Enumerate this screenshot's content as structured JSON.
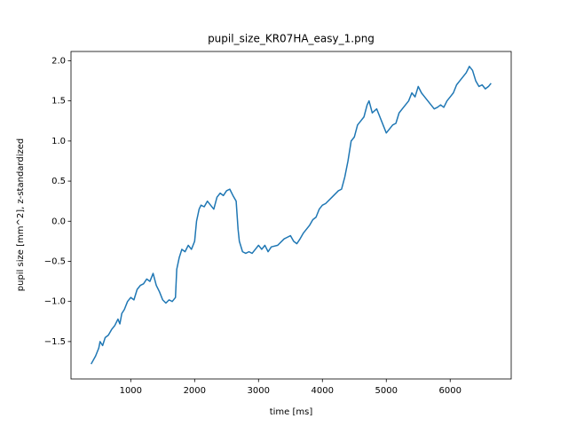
{
  "chart_data": {
    "type": "line",
    "title": "pupil_size_KR07HA_easy_1.png",
    "x_label": "time [ms]",
    "y_label": "pupil size [mm^2], z-standardized",
    "color": "#1f77b4",
    "xlim": [
      65,
      6955
    ],
    "ylim": [
      -1.966,
      2.116
    ],
    "xticks": [
      1000,
      2000,
      3000,
      4000,
      5000,
      6000
    ],
    "yticks": [
      {
        "value": -1.5,
        "label": "−1.5"
      },
      {
        "value": -1.0,
        "label": "−1.0"
      },
      {
        "value": -0.5,
        "label": "−0.5"
      },
      {
        "value": 0.0,
        "label": "0.0"
      },
      0.5,
      {
        "value": 1.0,
        "label": "1.0"
      },
      1.5,
      {
        "value": 2.0,
        "label": "2.0"
      }
    ],
    "x": [
      380,
      450,
      500,
      520,
      560,
      600,
      650,
      700,
      750,
      800,
      830,
      860,
      900,
      950,
      1000,
      1050,
      1100,
      1150,
      1200,
      1250,
      1300,
      1350,
      1400,
      1450,
      1500,
      1550,
      1600,
      1650,
      1700,
      1720,
      1760,
      1800,
      1850,
      1900,
      1950,
      2000,
      2030,
      2070,
      2100,
      2150,
      2200,
      2250,
      2300,
      2350,
      2400,
      2450,
      2500,
      2550,
      2600,
      2650,
      2680,
      2700,
      2750,
      2800,
      2850,
      2900,
      2950,
      3000,
      3050,
      3100,
      3150,
      3200,
      3300,
      3400,
      3450,
      3500,
      3550,
      3600,
      3650,
      3700,
      3750,
      3800,
      3850,
      3900,
      3950,
      4000,
      4050,
      4150,
      4250,
      4300,
      4350,
      4400,
      4450,
      4500,
      4550,
      4600,
      4650,
      4700,
      4730,
      4780,
      4850,
      4900,
      4950,
      5000,
      5050,
      5100,
      5150,
      5200,
      5250,
      5300,
      5350,
      5400,
      5450,
      5500,
      5550,
      5600,
      5650,
      5700,
      5750,
      5800,
      5850,
      5900,
      5950,
      6000,
      6050,
      6100,
      6150,
      6200,
      6250,
      6300,
      6350,
      6400,
      6450,
      6500,
      6550,
      6600,
      6640
    ],
    "values": [
      -1.78,
      -1.68,
      -1.58,
      -1.5,
      -1.55,
      -1.45,
      -1.42,
      -1.35,
      -1.3,
      -1.22,
      -1.28,
      -1.15,
      -1.1,
      -1.0,
      -0.95,
      -0.98,
      -0.85,
      -0.8,
      -0.78,
      -0.72,
      -0.75,
      -0.65,
      -0.8,
      -0.88,
      -0.98,
      -1.02,
      -0.98,
      -1.0,
      -0.95,
      -0.6,
      -0.45,
      -0.35,
      -0.38,
      -0.3,
      -0.35,
      -0.25,
      0.0,
      0.15,
      0.2,
      0.18,
      0.25,
      0.2,
      0.15,
      0.3,
      0.35,
      0.32,
      0.38,
      0.4,
      0.32,
      0.25,
      -0.1,
      -0.25,
      -0.38,
      -0.4,
      -0.38,
      -0.4,
      -0.35,
      -0.3,
      -0.35,
      -0.3,
      -0.38,
      -0.32,
      -0.3,
      -0.22,
      -0.2,
      -0.18,
      -0.25,
      -0.28,
      -0.22,
      -0.15,
      -0.1,
      -0.05,
      0.02,
      0.05,
      0.15,
      0.2,
      0.22,
      0.3,
      0.38,
      0.4,
      0.55,
      0.75,
      1.0,
      1.05,
      1.2,
      1.25,
      1.3,
      1.45,
      1.5,
      1.35,
      1.4,
      1.3,
      1.2,
      1.1,
      1.15,
      1.2,
      1.22,
      1.35,
      1.4,
      1.45,
      1.5,
      1.6,
      1.55,
      1.68,
      1.6,
      1.55,
      1.5,
      1.45,
      1.4,
      1.42,
      1.45,
      1.42,
      1.5,
      1.55,
      1.6,
      1.7,
      1.75,
      1.8,
      1.85,
      1.93,
      1.88,
      1.75,
      1.68,
      1.7,
      1.65,
      1.68,
      1.72
    ]
  }
}
